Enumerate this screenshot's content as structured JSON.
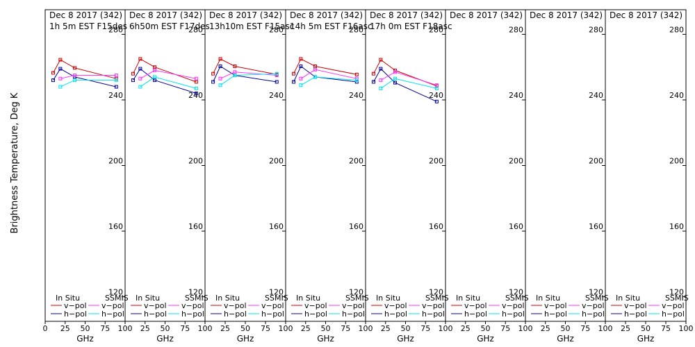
{
  "chart_data": {
    "type": "line",
    "ylabel": "Brightness Temperature, Deg K",
    "xlabel": "GHz",
    "xlim": [
      0,
      100
    ],
    "ylim": [
      105,
      295
    ],
    "x_ticks": [
      "0",
      "25",
      "50",
      "75",
      "100"
    ],
    "y_ticks": [
      120,
      160,
      200,
      240,
      280
    ],
    "legend": {
      "insitu_title": "In Situ",
      "sat_title": "SSMIS",
      "vpol": "v−pol",
      "hpol": "h−pol"
    },
    "colors": {
      "insitu_v": "#cc0000",
      "insitu_h": "#000099",
      "sat_v": "#ff33ff",
      "sat_h": "#00e5ee"
    },
    "panels": [
      {
        "title1": "Dec 8 2017 (342)",
        "title2": "1h 5m  EST F15des",
        "insitu_v": {
          "x": [
            10,
            19,
            37,
            89
          ],
          "y": [
            256.5,
            264.5,
            259.5,
            253
          ]
        },
        "insitu_h": {
          "x": [
            10,
            19,
            37,
            89
          ],
          "y": [
            252,
            259,
            254,
            248
          ]
        },
        "sat_v": {
          "x": [
            19,
            37,
            89
          ],
          "y": [
            253,
            255,
            255
          ]
        },
        "sat_h": {
          "x": [
            19,
            37,
            89
          ],
          "y": [
            248,
            252,
            252
          ]
        }
      },
      {
        "title1": "Dec 8 2017 (342)",
        "title2": "6h50m  EST F17des",
        "insitu_v": {
          "x": [
            10,
            19,
            37,
            89
          ],
          "y": [
            256,
            265,
            260,
            251
          ]
        },
        "insitu_h": {
          "x": [
            10,
            19,
            37,
            89
          ],
          "y": [
            252,
            259,
            252,
            244
          ]
        },
        "sat_v": {
          "x": [
            19,
            37,
            89
          ],
          "y": [
            253,
            258,
            253
          ]
        },
        "sat_h": {
          "x": [
            19,
            37,
            89
          ],
          "y": [
            248,
            254,
            247
          ]
        }
      },
      {
        "title1": "Dec 8 2017 (342)",
        "title2": "13h10m  EST F15asc",
        "insitu_v": {
          "x": [
            10,
            19,
            37,
            89
          ],
          "y": [
            256,
            265,
            260.5,
            255.5
          ]
        },
        "insitu_h": {
          "x": [
            10,
            19,
            37,
            89
          ],
          "y": [
            251,
            260.5,
            255,
            251
          ]
        },
        "sat_v": {
          "x": [
            19,
            37,
            89
          ],
          "y": [
            253,
            257,
            255
          ]
        },
        "sat_h": {
          "x": [
            19,
            37,
            89
          ],
          "y": [
            249,
            255,
            256
          ]
        }
      },
      {
        "title1": "Dec 8 2017 (342)",
        "title2": "14h 5m  EST F16asc",
        "insitu_v": {
          "x": [
            10,
            19,
            37,
            89
          ],
          "y": [
            256,
            265,
            260.5,
            255.5
          ]
        },
        "insitu_h": {
          "x": [
            10,
            19,
            37,
            89
          ],
          "y": [
            251,
            260.5,
            254,
            251
          ]
        },
        "sat_v": {
          "x": [
            19,
            37,
            89
          ],
          "y": [
            253,
            258.5,
            253
          ]
        },
        "sat_h": {
          "x": [
            19,
            37,
            89
          ],
          "y": [
            249,
            254,
            252
          ]
        }
      },
      {
        "title1": "Dec 8 2017 (342)",
        "title2": "17h 0m  EST F18asc",
        "insitu_v": {
          "x": [
            10,
            19,
            37,
            89
          ],
          "y": [
            256,
            264.5,
            258,
            248.5
          ]
        },
        "insitu_h": {
          "x": [
            10,
            19,
            37,
            89
          ],
          "y": [
            251,
            259,
            250.5,
            239
          ]
        },
        "sat_v": {
          "x": [
            19,
            37,
            89
          ],
          "y": [
            252,
            257,
            249
          ]
        },
        "sat_h": {
          "x": [
            19,
            37,
            89
          ],
          "y": [
            247,
            253,
            247
          ]
        }
      },
      {
        "title1": "Dec 8 2017 (342)",
        "title2": "",
        "insitu_v": {
          "x": [],
          "y": []
        },
        "insitu_h": {
          "x": [],
          "y": []
        },
        "sat_v": {
          "x": [],
          "y": []
        },
        "sat_h": {
          "x": [],
          "y": []
        }
      },
      {
        "title1": "Dec 8 2017 (342)",
        "title2": "",
        "insitu_v": {
          "x": [],
          "y": []
        },
        "insitu_h": {
          "x": [],
          "y": []
        },
        "sat_v": {
          "x": [],
          "y": []
        },
        "sat_h": {
          "x": [],
          "y": []
        }
      },
      {
        "title1": "Dec 8 2017 (342)",
        "title2": "",
        "insitu_v": {
          "x": [],
          "y": []
        },
        "insitu_h": {
          "x": [],
          "y": []
        },
        "sat_v": {
          "x": [],
          "y": []
        },
        "sat_h": {
          "x": [],
          "y": []
        }
      }
    ]
  }
}
